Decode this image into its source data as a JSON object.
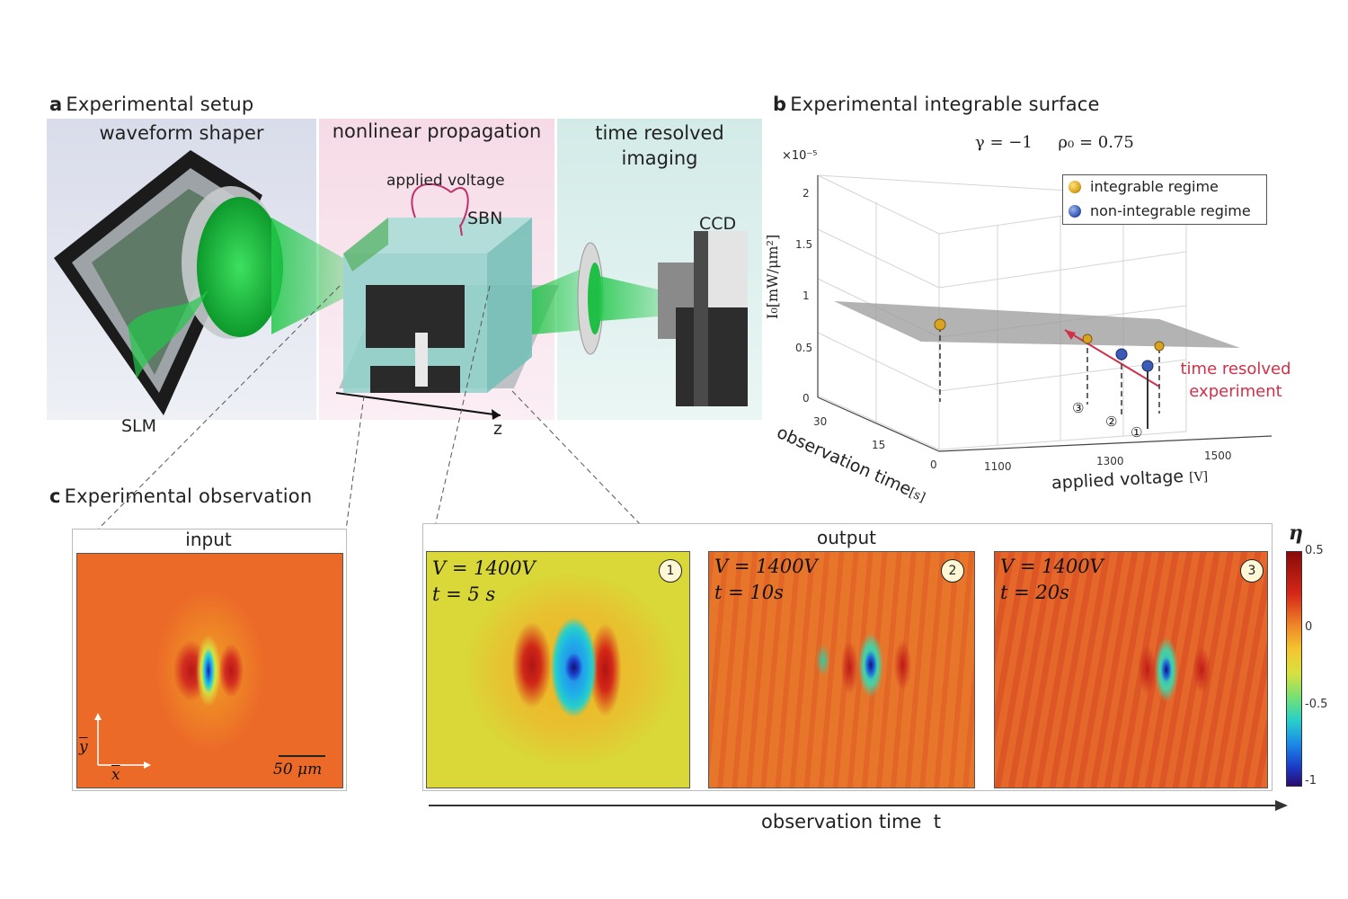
{
  "panel_a": {
    "letter": "a",
    "title": "Experimental setup",
    "sections": {
      "shaper": "waveform shaper",
      "propagation": "nonlinear propagation",
      "imaging_line1": "time resolved",
      "imaging_line2": "imaging"
    },
    "labels": {
      "slm": "SLM",
      "sbn": "SBN",
      "voltage": "applied voltage",
      "ccd": "CCD",
      "z": "z"
    }
  },
  "panel_b": {
    "letter": "b",
    "title": "Experimental integrable surface",
    "params": "γ = −1     ρ₀ = 0.75",
    "scale": "×10⁻⁵",
    "ylabel": "I₀[mW/μm²]",
    "xlabel_obs": "observation time",
    "xlabel_obs_unit": "[s]",
    "xlabel_volt": "applied voltage",
    "xlabel_volt_unit": "[V]",
    "yticks": [
      "2",
      "1.5",
      "1",
      "0.5",
      "0"
    ],
    "obs_ticks": [
      "30",
      "15",
      "0"
    ],
    "volt_ticks": [
      "1100",
      "1300",
      "1500"
    ],
    "legend": {
      "integrable": "integrable regime",
      "nonintegrable": "non-integrable regime"
    },
    "annotation_line1": "time resolved",
    "annotation_line2": "experiment",
    "markers": [
      "①",
      "②",
      "③"
    ],
    "colors": {
      "integrable": "#d9a520",
      "nonintegrable": "#3b5bb5",
      "annotation": "#d0304a"
    }
  },
  "panel_c": {
    "letter": "c",
    "title": "Experimental observation",
    "input_label": "input",
    "output_label": "output",
    "scalebar": "50 μm",
    "axis_y": "y",
    "axis_x": "x",
    "frames": [
      {
        "v": "V = 1400V",
        "t": "t = 5 s",
        "n": "1"
      },
      {
        "v": "V = 1400V",
        "t": "t = 10s",
        "n": "2"
      },
      {
        "v": "V = 1400V",
        "t": "t = 20s",
        "n": "3"
      }
    ],
    "colorbar": {
      "label": "η",
      "ticks": [
        "0.5",
        "0",
        "-0.5",
        "-1"
      ]
    },
    "time_axis": "observation time  t"
  }
}
